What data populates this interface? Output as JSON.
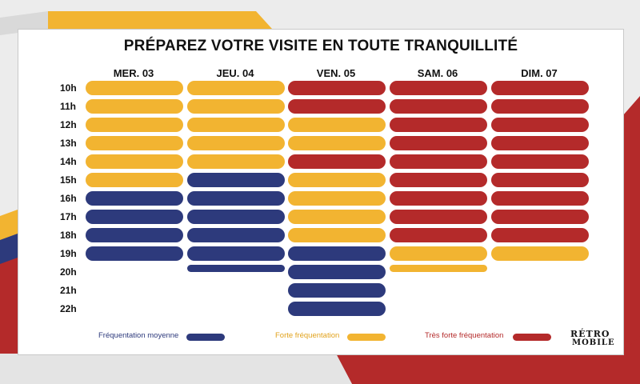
{
  "colors": {
    "moyenne": "#2d3a7c",
    "forte": "#f2b431",
    "tres_forte": "#b42a2a"
  },
  "chart_data": {
    "type": "heatmap",
    "title": "PRÉPAREZ VOTRE VISITE EN TOUTE TRANQUILLITÉ",
    "days": [
      "MER. 03",
      "JEU. 04",
      "VEN. 05",
      "SAM. 06",
      "DIM. 07"
    ],
    "hours": [
      "10h",
      "11h",
      "12h",
      "13h",
      "14h",
      "15h",
      "16h",
      "17h",
      "18h",
      "19h",
      "20h",
      "21h",
      "22h"
    ],
    "levels": [
      {
        "key": "moyenne",
        "label": "Fréquentation moyenne"
      },
      {
        "key": "forte",
        "label": "Forte fréquentation"
      },
      {
        "key": "tres_forte",
        "label": "Très forte fréquentation"
      }
    ],
    "grid": [
      [
        "forte",
        "forte",
        "forte",
        "forte",
        "forte",
        "forte",
        "moyenne",
        "moyenne",
        "moyenne",
        "moyenne",
        null,
        null,
        null
      ],
      [
        "forte",
        "forte",
        "forte",
        "forte",
        "forte",
        "moyenne",
        "moyenne",
        "moyenne",
        "moyenne",
        "moyenne",
        "moyenne",
        null,
        null
      ],
      [
        "tres_forte",
        "tres_forte",
        "forte",
        "forte",
        "tres_forte",
        "forte",
        "forte",
        "forte",
        "forte",
        "moyenne",
        "moyenne",
        "moyenne",
        "moyenne"
      ],
      [
        "tres_forte",
        "tres_forte",
        "tres_forte",
        "tres_forte",
        "tres_forte",
        "tres_forte",
        "tres_forte",
        "tres_forte",
        "tres_forte",
        "forte",
        "forte",
        null,
        null
      ],
      [
        "tres_forte",
        "tres_forte",
        "tres_forte",
        "tres_forte",
        "tres_forte",
        "tres_forte",
        "tres_forte",
        "tres_forte",
        "tres_forte",
        "forte",
        null,
        null,
        null
      ]
    ],
    "partial": [
      [
        1,
        10
      ],
      [
        3,
        10
      ]
    ]
  },
  "logo": {
    "line1": "RÉTRO",
    "line2": "MOBILE"
  }
}
